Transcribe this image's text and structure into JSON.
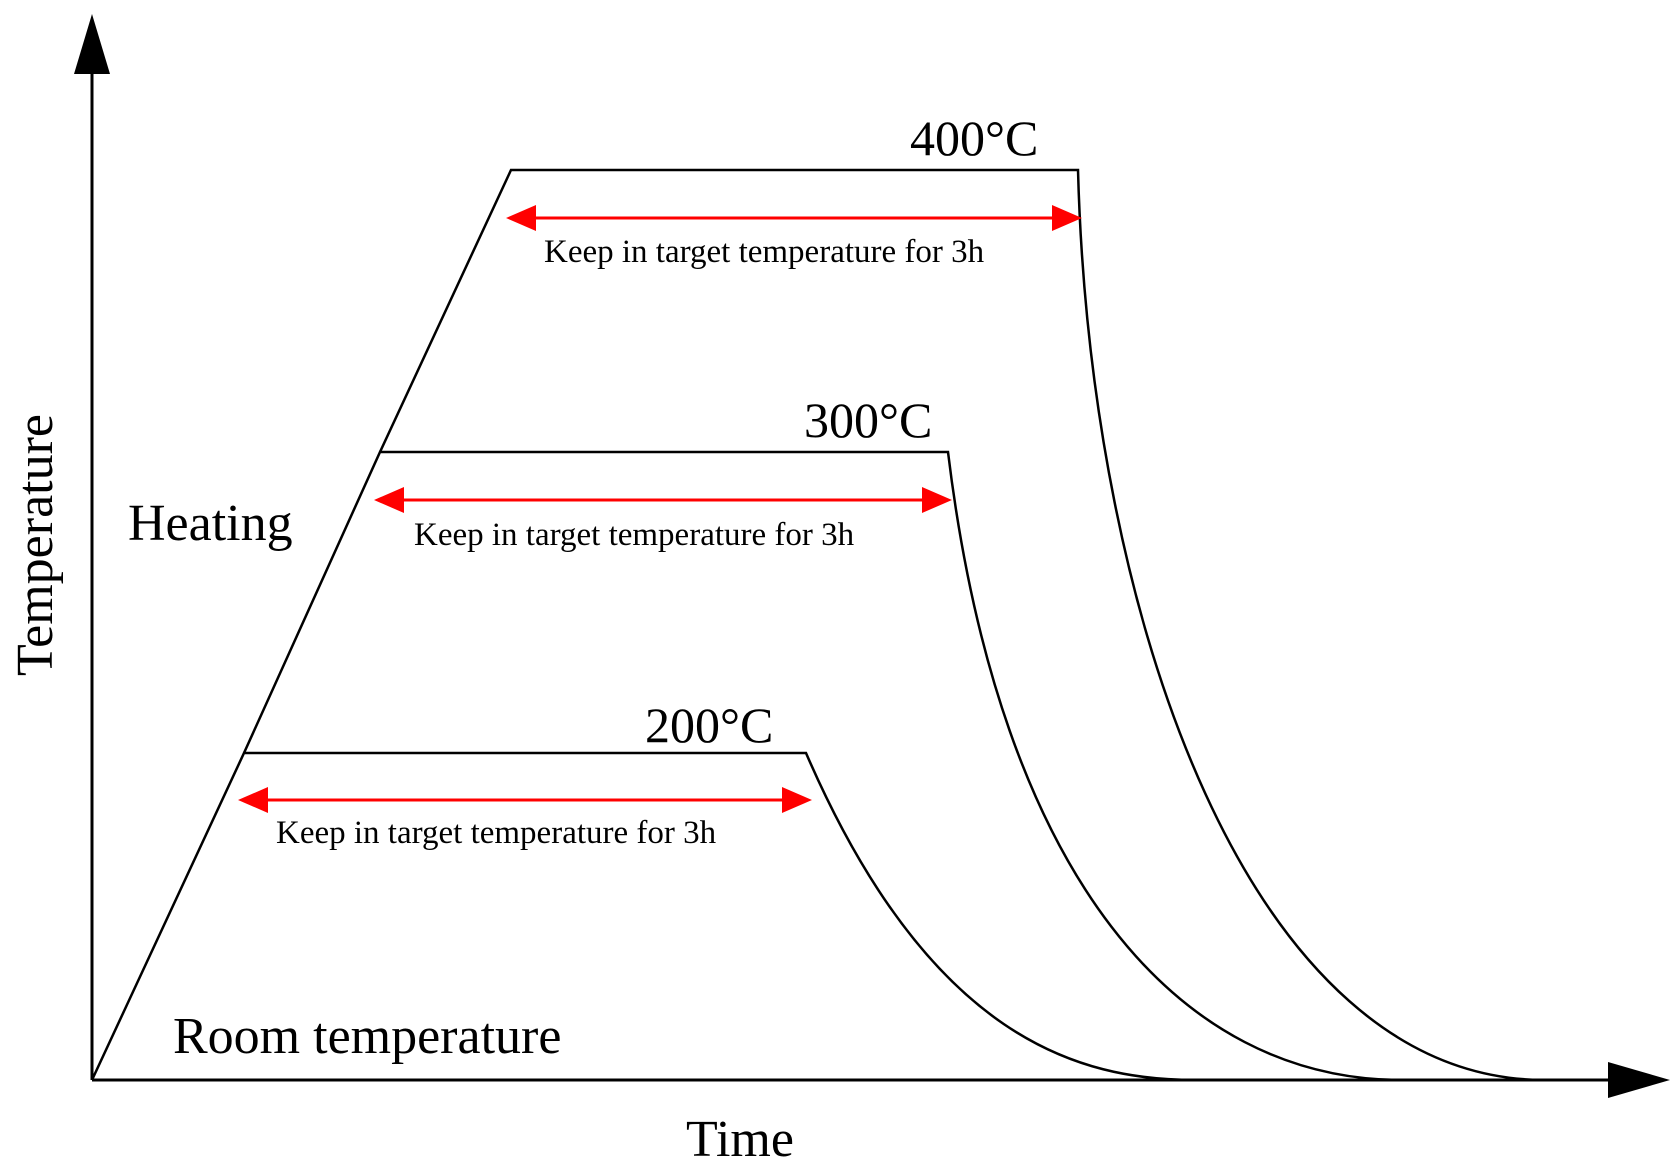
{
  "axes": {
    "y_label": "Temperature",
    "x_label": "Time"
  },
  "annotations": {
    "heating": "Heating",
    "room_temperature": "Room temperature"
  },
  "profiles": [
    {
      "target": "200°C",
      "hold_label": "Keep in target temperature for 3h"
    },
    {
      "target": "300°C",
      "hold_label": "Keep in target temperature for 3h"
    },
    {
      "target": "400°C",
      "hold_label": "Keep in target temperature for 3h"
    }
  ],
  "colors": {
    "curve": "#000000",
    "hold_arrow": "#ff0000",
    "background": "#ffffff"
  }
}
